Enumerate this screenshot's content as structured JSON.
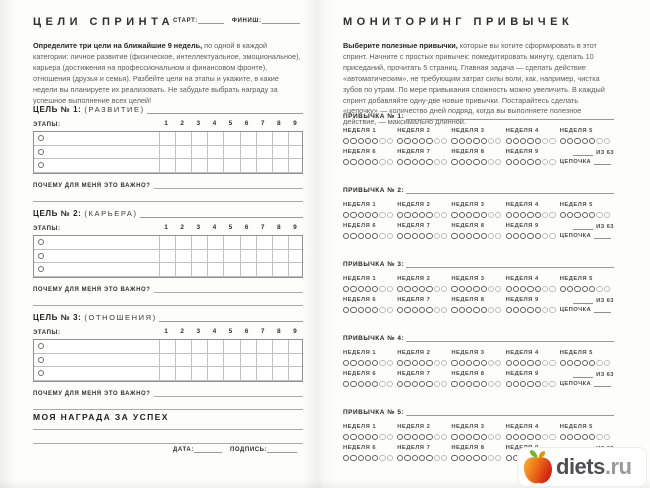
{
  "left_page": {
    "title": "ЦЕЛИ СПРИНТА",
    "start_label": "СТАРТ:",
    "finish_label": "ФИНИШ:",
    "intro_bold": "Определите три цели на ближайшие 9 недель,",
    "intro_rest": " по одной в каждой категории: личное развитие (физическое, интеллектуальное, эмоциональное), карьера (достижения на профессиональном и финансовом фронте), отношения (друзья и семья). Разбейте цели на этапы и укажите, в какие недели вы планируете их реализовать. Не забудьте выбрать награду за успешное выполнение всех целей!",
    "stages_label": "ЭТАПЫ:",
    "why_label": "ПОЧЕМУ ДЛЯ МЕНЯ ЭТО ВАЖНО?",
    "week_numbers": [
      "1",
      "2",
      "3",
      "4",
      "5",
      "6",
      "7",
      "8",
      "9"
    ],
    "stage_rows_per_goal": 3,
    "goals": [
      {
        "label": "ЦЕЛЬ № 1:",
        "category": "(РАЗВИТИЕ)"
      },
      {
        "label": "ЦЕЛЬ № 2:",
        "category": "(КАРЬЕРА)"
      },
      {
        "label": "ЦЕЛЬ № 3:",
        "category": "(ОТНОШЕНИЯ)"
      }
    ],
    "reward_title": "МОЯ НАГРАДА ЗА УСПЕХ",
    "date_label": "ДАТА:",
    "signature_label": "ПОДПИСЬ:"
  },
  "right_page": {
    "title": "МОНИТОРИНГ ПРИВЫЧЕК",
    "intro_bold": "Выберите полезные привычки,",
    "intro_rest": " которые вы хотите сформировать в этот спринт. Начните с простых привычек: помедитировать минуту, сделать 10 приседаний, прочитать 5 страниц. Главная задача — сделать действие «автоматическим», не требующим затрат силы воли, как, например, чистка зубов по утрам. По мере привыкания сложность можно увеличить. В каждый спринт добавляйте одну-две новые привычки. Постарайтесь сделать «цепочку» — количество дней подряд, когда вы выполняете полезное действие, — максимально длинной.",
    "habits": [
      {
        "label": "ПРИВЫЧКА № 1:"
      },
      {
        "label": "ПРИВЫЧКА № 2:"
      },
      {
        "label": "ПРИВЫЧКА № 3:"
      },
      {
        "label": "ПРИВЫЧКА № 4:"
      },
      {
        "label": "ПРИВЫЧКА № 5:"
      }
    ],
    "weeks_row1": [
      "НЕДЕЛЯ 1",
      "НЕДЕЛЯ 2",
      "НЕДЕЛЯ 3",
      "НЕДЕЛЯ 4",
      "НЕДЕЛЯ 5"
    ],
    "weeks_row2": [
      "НЕДЕЛЯ 6",
      "НЕДЕЛЯ 7",
      "НЕДЕЛЯ 8",
      "НЕДЕЛЯ 9"
    ],
    "days_per_week": 7,
    "weekday_dark_count": 5,
    "total_label": "ИЗ 63",
    "chain_label": "ЦЕПОЧКА"
  },
  "logo": {
    "icon": "apple-icon",
    "text_main": "diets",
    "text_suffix": ".ru",
    "colors": {
      "apple_orange": "#f7a21b",
      "apple_red": "#e03a1a",
      "leaf_green": "#76b82a",
      "leaf_orange": "#f29100",
      "text_dark": "#4f4f51",
      "text_light": "#9b9b9d"
    }
  }
}
